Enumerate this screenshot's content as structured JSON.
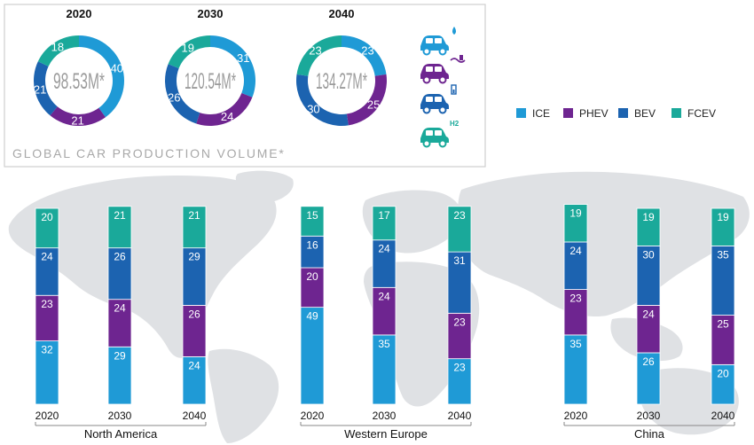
{
  "colors": {
    "ICE": "#1f9ad6",
    "PHEV": "#6e2590",
    "BEV": "#1c63b0",
    "FCEV": "#1aa99a",
    "map": "#dfe1e4",
    "axis": "#888888",
    "panel_border": "#cfcfcf",
    "caption": "#a8a8a8",
    "donut_center": "#9b9b9b"
  },
  "legend": {
    "items": [
      {
        "key": "ICE",
        "label": "ICE"
      },
      {
        "key": "PHEV",
        "label": "PHEV"
      },
      {
        "key": "BEV",
        "label": "BEV"
      },
      {
        "key": "FCEV",
        "label": "FCEV"
      }
    ]
  },
  "icons": [
    {
      "name": "car-fuel-drop-icon",
      "color_key": "ICE"
    },
    {
      "name": "car-plug-icon",
      "color_key": "PHEV"
    },
    {
      "name": "car-battery-icon",
      "color_key": "BEV"
    },
    {
      "name": "car-h2-icon",
      "color_key": "FCEV",
      "label": "H2"
    }
  ],
  "global_panel": {
    "caption": "GLOBAL CAR PRODUCTION VOLUME*"
  },
  "chart_data": [
    {
      "type": "pie",
      "title": "2020",
      "center_label": "98.53M*",
      "slices": [
        {
          "name": "ICE",
          "value": 40
        },
        {
          "name": "PHEV",
          "value": 21
        },
        {
          "name": "BEV",
          "value": 21
        },
        {
          "name": "FCEV",
          "value": 18
        }
      ]
    },
    {
      "type": "pie",
      "title": "2030",
      "center_label": "120.54M*",
      "slices": [
        {
          "name": "ICE",
          "value": 31
        },
        {
          "name": "PHEV",
          "value": 24
        },
        {
          "name": "BEV",
          "value": 26
        },
        {
          "name": "FCEV",
          "value": 19
        }
      ]
    },
    {
      "type": "pie",
      "title": "2040",
      "center_label": "134.27M*",
      "slices": [
        {
          "name": "ICE",
          "value": 23
        },
        {
          "name": "PHEV",
          "value": 25
        },
        {
          "name": "BEV",
          "value": 30
        },
        {
          "name": "FCEV",
          "value": 23
        }
      ]
    },
    {
      "type": "bar",
      "stacked": true,
      "title": "North America",
      "categories": [
        "2020",
        "2030",
        "2040"
      ],
      "series": [
        {
          "name": "ICE",
          "values": [
            32,
            29,
            24
          ]
        },
        {
          "name": "PHEV",
          "values": [
            23,
            24,
            26
          ]
        },
        {
          "name": "BEV",
          "values": [
            24,
            26,
            29
          ]
        },
        {
          "name": "FCEV",
          "values": [
            20,
            21,
            21
          ]
        }
      ]
    },
    {
      "type": "bar",
      "stacked": true,
      "title": "Western Europe",
      "categories": [
        "2020",
        "2030",
        "2040"
      ],
      "series": [
        {
          "name": "ICE",
          "values": [
            49,
            35,
            23
          ]
        },
        {
          "name": "PHEV",
          "values": [
            20,
            24,
            23
          ]
        },
        {
          "name": "BEV",
          "values": [
            16,
            24,
            31
          ]
        },
        {
          "name": "FCEV",
          "values": [
            15,
            17,
            23
          ]
        }
      ]
    },
    {
      "type": "bar",
      "stacked": true,
      "title": "China",
      "categories": [
        "2020",
        "2030",
        "2040"
      ],
      "series": [
        {
          "name": "ICE",
          "values": [
            35,
            26,
            20
          ]
        },
        {
          "name": "PHEV",
          "values": [
            23,
            24,
            25
          ]
        },
        {
          "name": "BEV",
          "values": [
            24,
            30,
            35
          ]
        },
        {
          "name": "FCEV",
          "values": [
            19,
            19,
            19
          ]
        }
      ]
    }
  ]
}
